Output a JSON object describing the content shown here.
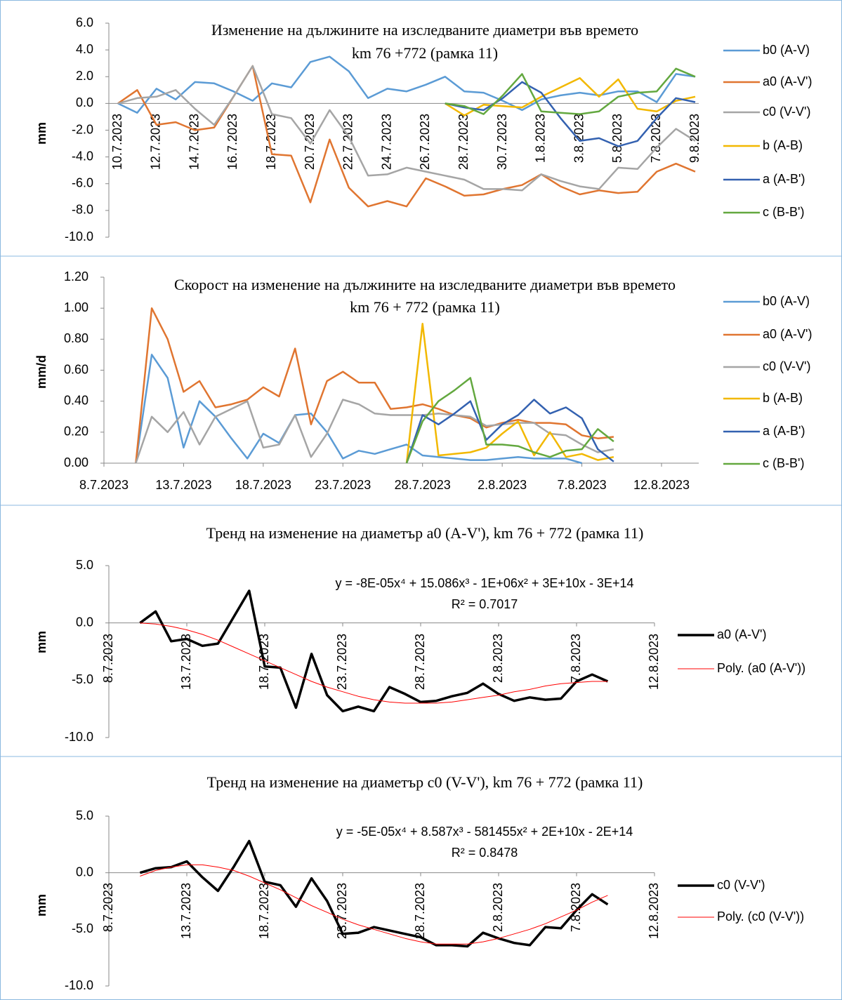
{
  "chart_data": [
    {
      "type": "line",
      "title": "Изменение на дължините на изследваните диаметри във времето",
      "subtitle": "km 76 +772  (рамка 11)",
      "y_label": "mm",
      "categories": [
        "10.7.2023",
        null,
        "12.7.2023",
        null,
        "14.7.2023",
        null,
        "16.7.2023",
        null,
        "18.7.2023",
        null,
        "20.7.2023",
        null,
        "22.7.2023",
        null,
        "24.7.2023",
        null,
        "26.7.2023",
        null,
        "28.7.2023",
        null,
        "30.7.2023",
        null,
        "1.8.2023",
        null,
        "3.8.2023",
        null,
        "5.8.2023",
        null,
        "7.8.2023",
        null,
        "9.8.2023"
      ],
      "ylim": [
        -10,
        6
      ],
      "yticks": [
        {
          "value": 6,
          "label": "6.0"
        },
        {
          "value": 4,
          "label": "4.0"
        },
        {
          "value": 2,
          "label": "2.0"
        },
        {
          "value": 0,
          "label": "0.0"
        },
        {
          "value": -2,
          "label": "-2.0"
        },
        {
          "value": -4,
          "label": "-4.0"
        },
        {
          "value": -6,
          "label": "-6.0"
        },
        {
          "value": -8,
          "label": "-8.0"
        },
        {
          "value": -10,
          "label": "-10.0"
        }
      ],
      "legend": "right",
      "series": [
        {
          "name": "b0 (A-V)",
          "color": "#5b9bd5",
          "values": [
            0,
            -0.7,
            1.1,
            0.3,
            1.6,
            1.5,
            0.9,
            0.2,
            1.5,
            1.2,
            3.1,
            3.5,
            2.4,
            0.4,
            1.1,
            0.9,
            1.4,
            2.0,
            0.9,
            0.8,
            0.2,
            -0.5,
            0.3,
            0.6,
            0.8,
            0.6,
            0.9,
            0.9,
            0.1,
            2.2,
            2.0
          ]
        },
        {
          "name": "a0 (A-V')",
          "color": "#e07530",
          "values": [
            0,
            1.0,
            -1.6,
            -1.4,
            -2.0,
            -1.8,
            0.5,
            2.8,
            -3.8,
            -3.9,
            -7.4,
            -2.7,
            -6.3,
            -7.7,
            -7.3,
            -7.7,
            -5.6,
            -6.2,
            -6.9,
            -6.8,
            -6.4,
            -6.1,
            -5.3,
            -6.2,
            -6.8,
            -6.5,
            -6.7,
            -6.6,
            -5.1,
            -4.5,
            -5.1
          ]
        },
        {
          "name": "c0 (V-V')",
          "color": "#a5a5a5",
          "values": [
            0,
            0.4,
            0.5,
            1.0,
            -0.4,
            -1.6,
            0.5,
            2.8,
            -0.8,
            -1.1,
            -3.0,
            -0.5,
            -2.5,
            -5.4,
            -5.3,
            -4.8,
            -5.1,
            -5.4,
            -5.7,
            -6.4,
            -6.4,
            -6.5,
            -5.3,
            -5.8,
            -6.2,
            -6.4,
            -4.8,
            -4.9,
            -3.3,
            -1.9,
            -2.8
          ]
        },
        {
          "name": "b (A-B)",
          "color": "#f2b800",
          "values": [
            null,
            null,
            null,
            null,
            null,
            null,
            null,
            null,
            null,
            null,
            null,
            null,
            null,
            null,
            null,
            null,
            null,
            0,
            -0.9,
            -0.1,
            -0.2,
            -0.3,
            0.5,
            1.2,
            1.9,
            0.5,
            1.8,
            -0.4,
            -0.6,
            0.2,
            0.5
          ]
        },
        {
          "name": "a (A-B')",
          "color": "#3361b0",
          "values": [
            null,
            null,
            null,
            null,
            null,
            null,
            null,
            null,
            null,
            null,
            null,
            null,
            null,
            null,
            null,
            null,
            null,
            0,
            -0.3,
            -0.5,
            0.4,
            1.6,
            0.8,
            -1.1,
            -2.8,
            -2.6,
            -3.2,
            -2.8,
            -1.1,
            0.4,
            0.1
          ]
        },
        {
          "name": "c (B-B')",
          "color": "#63a83f",
          "values": [
            null,
            null,
            null,
            null,
            null,
            null,
            null,
            null,
            null,
            null,
            null,
            null,
            null,
            null,
            null,
            null,
            null,
            0,
            -0.2,
            -0.8,
            0.6,
            2.2,
            -0.6,
            -0.7,
            -0.8,
            -0.6,
            0.5,
            0.8,
            0.9,
            2.6,
            2.0
          ]
        }
      ]
    },
    {
      "type": "line",
      "title": "Скорост на изменение на дължините на изследваните диаметри във времето",
      "subtitle": "km 76 + 772  (рамка 11)",
      "y_label": "mm/d",
      "x": [
        "10.7.2023",
        "11.7.2023",
        "12.7.2023",
        "13.7.2023",
        "14.7.2023",
        "15.7.2023",
        "16.7.2023",
        "17.7.2023",
        "18.7.2023",
        "19.7.2023",
        "20.7.2023",
        "21.7.2023",
        "22.7.2023",
        "23.7.2023",
        "24.7.2023",
        "25.7.2023",
        "26.7.2023",
        "27.7.2023",
        "28.7.2023",
        "29.7.2023",
        "30.7.2023",
        "31.7.2023",
        "1.8.2023",
        "2.8.2023",
        "3.8.2023",
        "4.8.2023",
        "5.8.2023",
        "6.8.2023",
        "7.8.2023",
        "8.8.2023",
        "9.8.2023"
      ],
      "xlim": [
        "8.7.2023",
        "12.8.2023"
      ],
      "xticks": [
        "8.7.2023",
        "13.7.2023",
        "18.7.2023",
        "23.7.2023",
        "28.7.2023",
        "2.8.2023",
        "7.8.2023",
        "12.8.2023"
      ],
      "ylim": [
        0,
        1.2
      ],
      "yticks": [
        {
          "value": 1.2,
          "label": "1.20"
        },
        {
          "value": 1,
          "label": "1.00"
        },
        {
          "value": 0.8,
          "label": "0.80"
        },
        {
          "value": 0.6,
          "label": "0.60"
        },
        {
          "value": 0.4,
          "label": "0.40"
        },
        {
          "value": 0.2,
          "label": "0.20"
        },
        {
          "value": 0,
          "label": "0.00"
        }
      ],
      "legend": "right",
      "series": [
        {
          "name": "b0 (A-V)",
          "color": "#5b9bd5",
          "values": [
            0,
            0.7,
            0.55,
            0.1,
            0.4,
            0.3,
            0.16,
            0.03,
            0.19,
            0.13,
            0.31,
            0.32,
            0.2,
            0.03,
            0.08,
            0.06,
            0.09,
            0.12,
            0.05,
            0.04,
            0.03,
            0.02,
            0.02,
            0.03,
            0.04,
            0.03,
            0.03,
            0.03,
            0,
            null,
            null
          ]
        },
        {
          "name": "a0 (A-V')",
          "color": "#e07530",
          "values": [
            0,
            1.0,
            0.8,
            0.46,
            0.53,
            0.36,
            0.38,
            0.41,
            0.49,
            0.43,
            0.74,
            0.25,
            0.53,
            0.59,
            0.52,
            0.52,
            0.35,
            0.36,
            0.38,
            0.35,
            0.31,
            0.29,
            0.23,
            0.26,
            0.28,
            0.26,
            0.26,
            0.25,
            0.18,
            0.16,
            0.17
          ]
        },
        {
          "name": "c0 (V-V')",
          "color": "#a5a5a5",
          "values": [
            0,
            0.3,
            0.2,
            0.33,
            0.12,
            0.3,
            0.35,
            0.4,
            0.1,
            0.12,
            0.31,
            0.04,
            0.19,
            0.41,
            0.38,
            0.32,
            0.31,
            0.31,
            0.31,
            0.32,
            0.31,
            0.3,
            0.24,
            0.25,
            0.26,
            0.26,
            0.19,
            0.18,
            0.12,
            0.07,
            0.09
          ]
        },
        {
          "name": "b (A-B)",
          "color": "#f2b800",
          "values": [
            null,
            null,
            null,
            null,
            null,
            null,
            null,
            null,
            null,
            null,
            null,
            null,
            null,
            null,
            null,
            null,
            null,
            0,
            0.9,
            0.05,
            0.06,
            0.07,
            0.1,
            0.19,
            0.27,
            0.05,
            0.2,
            0.04,
            0.06,
            0.02,
            0.04
          ]
        },
        {
          "name": "a (A-B')",
          "color": "#3361b0",
          "values": [
            null,
            null,
            null,
            null,
            null,
            null,
            null,
            null,
            null,
            null,
            null,
            null,
            null,
            null,
            null,
            null,
            null,
            0,
            0.31,
            0.25,
            0.32,
            0.4,
            0.15,
            0.25,
            0.31,
            0.41,
            0.32,
            0.36,
            0.29,
            0.09,
            0.01
          ]
        },
        {
          "name": "c (B-B')",
          "color": "#63a83f",
          "values": [
            null,
            null,
            null,
            null,
            null,
            null,
            null,
            null,
            null,
            null,
            null,
            null,
            null,
            null,
            null,
            null,
            null,
            0,
            0.27,
            0.4,
            0.47,
            0.55,
            0.12,
            0.12,
            0.11,
            0.07,
            0.04,
            0.08,
            0.09,
            0.22,
            0.14
          ]
        }
      ]
    },
    {
      "type": "line",
      "title": "Тренд на изменение на диаметър a0 (A-V'), km 76 + 772  (рамка 11)",
      "y_label": "mm",
      "equation": "y = -8E-05x⁴ + 15.086x³ - 1E+06x² + 3E+10x - 3E+14",
      "r_squared": "R² = 0.7017",
      "x": [
        "10.7.2023",
        "11.7.2023",
        "12.7.2023",
        "13.7.2023",
        "14.7.2023",
        "15.7.2023",
        "16.7.2023",
        "17.7.2023",
        "18.7.2023",
        "19.7.2023",
        "20.7.2023",
        "21.7.2023",
        "22.7.2023",
        "23.7.2023",
        "24.7.2023",
        "25.7.2023",
        "26.7.2023",
        "27.7.2023",
        "28.7.2023",
        "29.7.2023",
        "30.7.2023",
        "31.7.2023",
        "1.8.2023",
        "2.8.2023",
        "3.8.2023",
        "4.8.2023",
        "5.8.2023",
        "6.8.2023",
        "7.8.2023",
        "8.8.2023",
        "9.8.2023"
      ],
      "xlim": [
        "8.7.2023",
        "12.8.2023"
      ],
      "xticks": [
        "8.7.2023",
        "13.7.2023",
        "18.7.2023",
        "23.7.2023",
        "28.7.2023",
        "2.8.2023",
        "7.8.2023",
        "12.8.2023"
      ],
      "ylim": [
        -10,
        5
      ],
      "yticks": [
        {
          "value": 5,
          "label": "5.0"
        },
        {
          "value": 0,
          "label": "0.0"
        },
        {
          "value": -5,
          "label": "-5.0"
        },
        {
          "value": -10,
          "label": "-10.0"
        }
      ],
      "legend": "right",
      "series": [
        {
          "name": "a0 (A-V')",
          "color": "#000000",
          "values": [
            0,
            1.0,
            -1.6,
            -1.4,
            -2.0,
            -1.8,
            0.5,
            2.8,
            -3.8,
            -3.9,
            -7.4,
            -2.7,
            -6.3,
            -7.7,
            -7.3,
            -7.7,
            -5.6,
            -6.2,
            -6.9,
            -6.8,
            -6.4,
            -6.1,
            -5.3,
            -6.2,
            -6.8,
            -6.5,
            -6.7,
            -6.6,
            -5.1,
            -4.5,
            -5.1
          ]
        },
        {
          "name": "Poly. (a0 (A-V'))",
          "color": "#ff0000",
          "values": [
            0,
            -0.1,
            -0.3,
            -0.6,
            -1.0,
            -1.5,
            -2.1,
            -2.7,
            -3.3,
            -3.9,
            -4.5,
            -5.1,
            -5.6,
            -6.0,
            -6.4,
            -6.7,
            -6.9,
            -7.0,
            -7.0,
            -7.0,
            -6.9,
            -6.7,
            -6.5,
            -6.3,
            -6.0,
            -5.8,
            -5.5,
            -5.3,
            -5.2,
            -5.1,
            -5.1
          ]
        }
      ]
    },
    {
      "type": "line",
      "title": "Тренд на изменение на диаметър c0 (V-V'), km 76 + 772  (рамка 11)",
      "y_label": "mm",
      "equation": "y = -5E-05x⁴ + 8.587x³ - 581455x² + 2E+10x - 2E+14",
      "r_squared": "R² = 0.8478",
      "x": [
        "10.7.2023",
        "11.7.2023",
        "12.7.2023",
        "13.7.2023",
        "14.7.2023",
        "15.7.2023",
        "16.7.2023",
        "17.7.2023",
        "18.7.2023",
        "19.7.2023",
        "20.7.2023",
        "21.7.2023",
        "22.7.2023",
        "23.7.2023",
        "24.7.2023",
        "25.7.2023",
        "26.7.2023",
        "27.7.2023",
        "28.7.2023",
        "29.7.2023",
        "30.7.2023",
        "31.7.2023",
        "1.8.2023",
        "2.8.2023",
        "3.8.2023",
        "4.8.2023",
        "5.8.2023",
        "6.8.2023",
        "7.8.2023",
        "8.8.2023",
        "9.8.2023"
      ],
      "xlim": [
        "8.7.2023",
        "12.8.2023"
      ],
      "xticks": [
        "8.7.2023",
        "13.7.2023",
        "18.7.2023",
        "23.7.2023",
        "28.7.2023",
        "2.8.2023",
        "7.8.2023",
        "12.8.2023"
      ],
      "ylim": [
        -10,
        5
      ],
      "yticks": [
        {
          "value": 5,
          "label": "5.0"
        },
        {
          "value": 0,
          "label": "0.0"
        },
        {
          "value": -5,
          "label": "-5.0"
        },
        {
          "value": -10,
          "label": "-10.0"
        }
      ],
      "legend": "right",
      "series": [
        {
          "name": "c0 (V-V')",
          "color": "#000000",
          "values": [
            0,
            0.4,
            0.5,
            1.0,
            -0.4,
            -1.6,
            0.5,
            2.8,
            -0.8,
            -1.1,
            -3.0,
            -0.5,
            -2.5,
            -5.4,
            -5.3,
            -4.8,
            -5.1,
            -5.4,
            -5.7,
            -6.4,
            -6.4,
            -6.5,
            -5.3,
            -5.8,
            -6.2,
            -6.4,
            -4.8,
            -4.9,
            -3.3,
            -1.9,
            -2.8
          ]
        },
        {
          "name": "Poly. (c0 (V-V'))",
          "color": "#ff0000",
          "values": [
            -0.3,
            0.2,
            0.5,
            0.7,
            0.7,
            0.5,
            0.2,
            -0.3,
            -0.9,
            -1.5,
            -2.2,
            -2.9,
            -3.5,
            -4.1,
            -4.6,
            -5.0,
            -5.4,
            -5.8,
            -6.1,
            -6.3,
            -6.3,
            -6.3,
            -6.1,
            -5.8,
            -5.4,
            -5.0,
            -4.5,
            -3.9,
            -3.3,
            -2.6,
            -2.0
          ]
        }
      ]
    }
  ]
}
